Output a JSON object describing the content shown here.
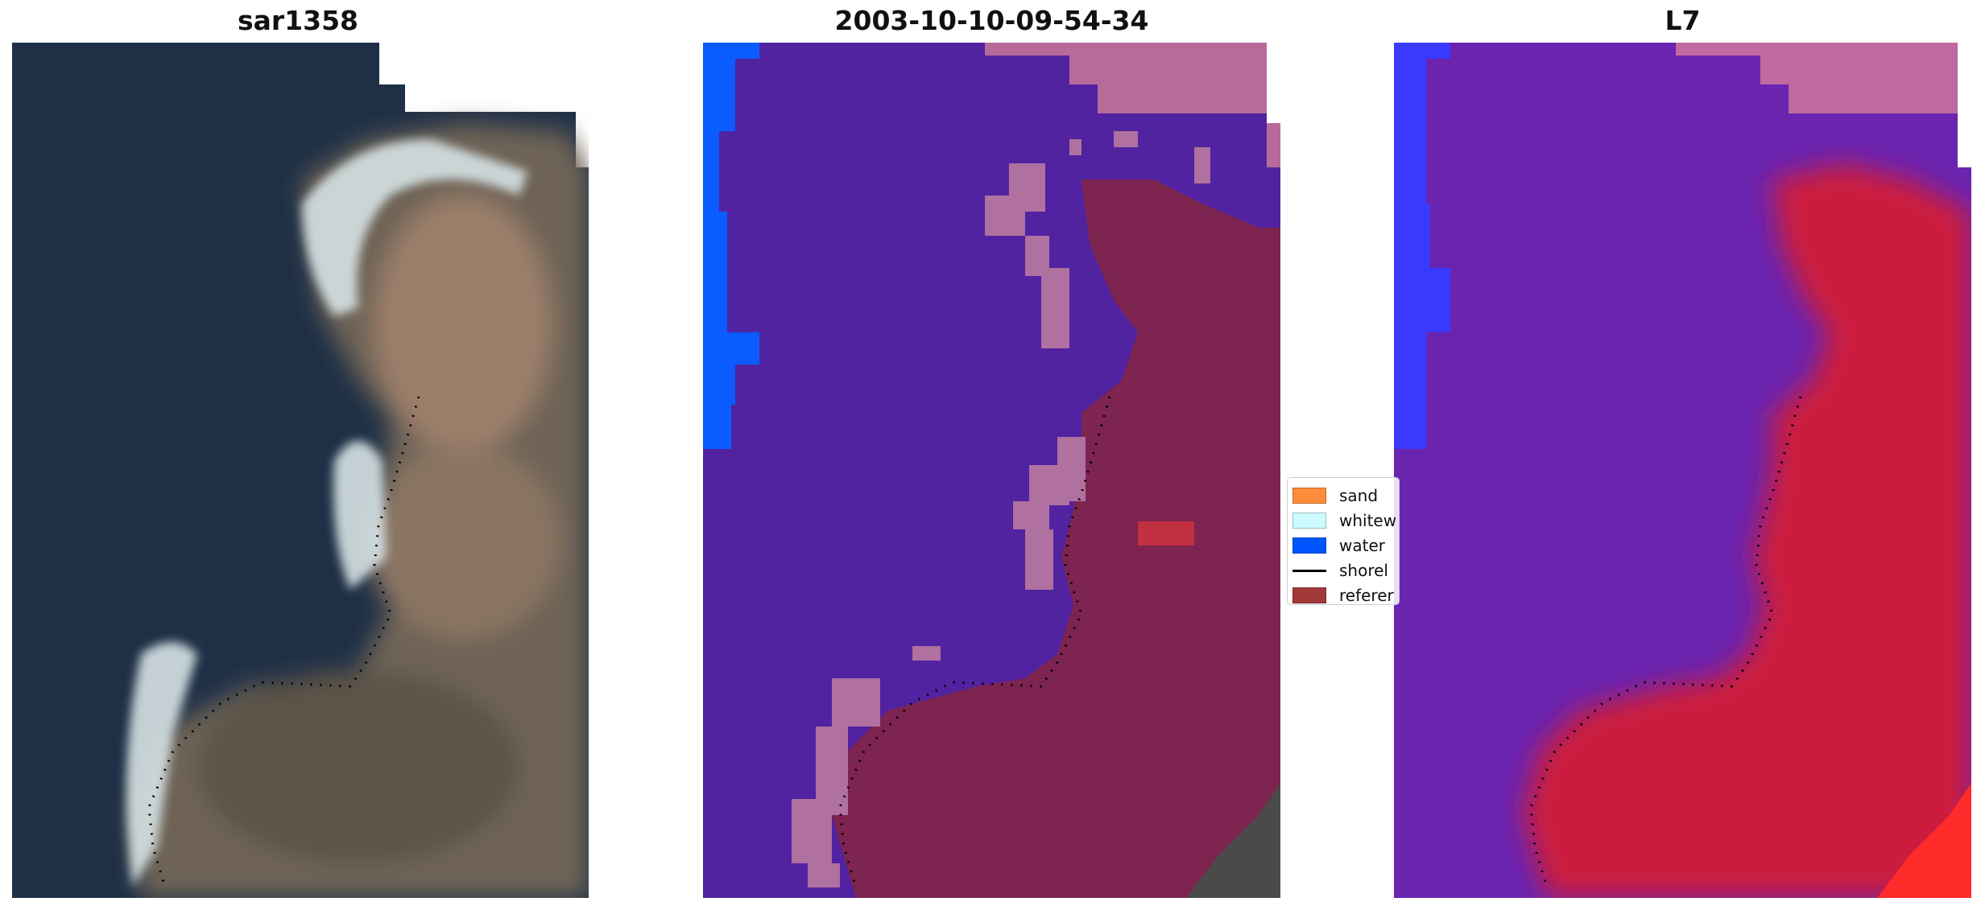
{
  "panels": [
    {
      "title": "sar1358"
    },
    {
      "title": "2003-10-10-09-54-34"
    },
    {
      "title": "L7"
    }
  ],
  "legend": {
    "items": [
      {
        "label": "sand",
        "color": "#ff8c3a"
      },
      {
        "label": "whitew",
        "color": "#ccfcff"
      },
      {
        "label": "water",
        "color": "#0055ff"
      },
      {
        "label": "shorel",
        "color": "#000000",
        "kind": "line"
      },
      {
        "label": "referer",
        "color": "#a33a3a"
      }
    ]
  },
  "colors": {
    "sea_dark": "#1f3046",
    "land_brown": "#7a6a5a",
    "whitewater": "#d8e4e8",
    "class_purple": "#5123a0",
    "class_pink": "#b86a9a",
    "class_blue": "#0a5cff",
    "class_land_overlay": "#7a2350",
    "l7_purple": "#6a24b0",
    "l7_red": "#cc1a3c"
  }
}
